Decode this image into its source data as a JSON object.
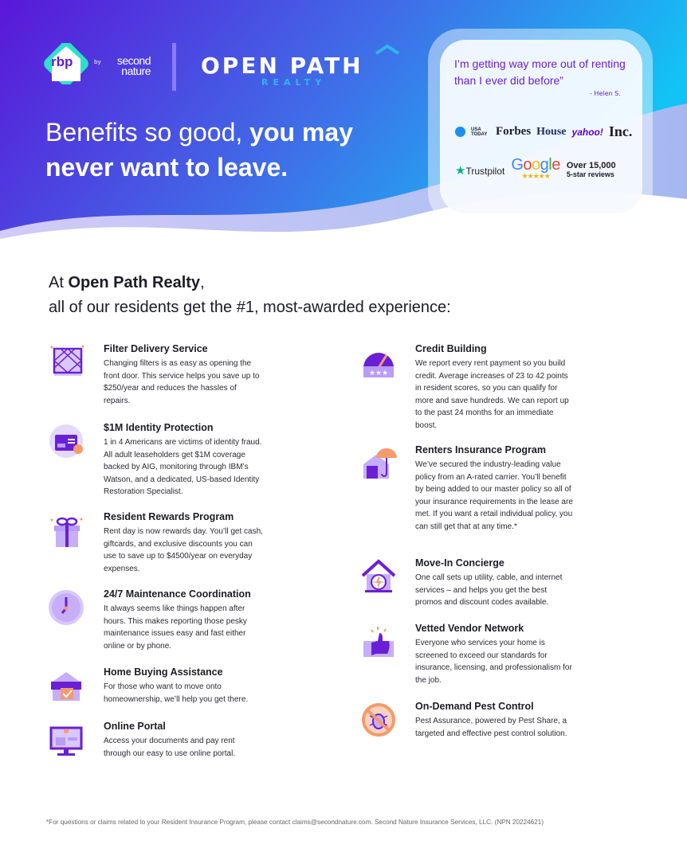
{
  "header": {
    "rbp": "rbp",
    "by": "by",
    "second_nature": "second nature",
    "open_path": "OPEN PATH",
    "realty": "REALTY",
    "headline_light": "Benefits so good, ",
    "headline_bold": "you may never want to leave."
  },
  "testimonial": {
    "quote": "I’m getting way more out of renting than I ever did before”",
    "author": "- Helen S."
  },
  "press": {
    "usa_today": "USA TODAY",
    "forbes": "Forbes",
    "house": "House",
    "yahoo": "yahoo!",
    "inc": "Inc."
  },
  "reviews": {
    "trustpilot": "Trustpilot",
    "google": "Google",
    "stars": "★★★★★",
    "count_line1": "Over 15,000",
    "count_line2": "5-star reviews"
  },
  "intro": {
    "prefix": "At ",
    "company": "Open Path Realty",
    "suffix": ",",
    "line2": "all of our residents get the #1, most-awarded experience:"
  },
  "benefits_left": [
    {
      "title": "Filter Delivery Service",
      "desc": "Changing filters is as easy as opening the front door. This service helps you save up to $250/year and reduces the hassles of repairs.",
      "icon": "air-filter-icon"
    },
    {
      "title": "$1M Identity Protection",
      "desc": "1 in 4 Americans are victims of identity fraud. All adult leaseholders get $1M coverage backed by AIG, monitoring through IBM’s Watson, and a dedicated, US-based Identity Restoration Specialist.",
      "icon": "id-badge-icon"
    },
    {
      "title": "Resident Rewards Program",
      "desc": "Rent day is now rewards day. You’ll get cash, giftcards, and exclusive discounts you can use to save up to $4500/year on everyday expenses.",
      "icon": "gift-icon"
    },
    {
      "title": "24/7 Maintenance Coordination",
      "desc": "It always seems like things happen after hours. This makes reporting those pesky maintenance issues easy and fast either online or by phone.",
      "icon": "clock-icon"
    },
    {
      "title": "Home Buying Assistance",
      "desc": "For those who want to move onto homeownership, we’ll help you get there.",
      "icon": "house-sign-icon"
    },
    {
      "title": "Online Portal",
      "desc": "Access your documents and pay rent through our easy to use online portal.",
      "icon": "monitor-icon"
    }
  ],
  "benefits_right": [
    {
      "title": "Credit Building",
      "desc": "We report every rent payment so you build credit. Average increases of 23 to 42 points in resident scores, so you can qualify for more and save hundreds. We can report up to the past 24 months for an immediate boost.",
      "icon": "credit-gauge-icon"
    },
    {
      "title": "Renters Insurance Program",
      "desc": "We’ve secured the industry-leading value policy from an A-rated carrier. You’ll benefit by being added to our master policy so all of your insurance requirements in the lease are met. If you want a retail individual policy, you can still get that at any time.*",
      "icon": "umbrella-house-icon"
    },
    {
      "title": "Move-In Concierge",
      "desc": "One call sets up utility, cable, and internet services – and helps you get the best promos and discount codes available.",
      "icon": "home-utilities-icon"
    },
    {
      "title": "Vetted Vendor Network",
      "desc": "Everyone who services your home is screened to exceed our standards for insurance, licensing, and professionalism for the job.",
      "icon": "thumbs-up-icon"
    },
    {
      "title": "On-Demand Pest Control",
      "desc": "Pest Assurance, powered by Pest Share, a targeted and effective pest control solution.",
      "icon": "no-bugs-icon"
    }
  ],
  "footer": "*For questions or claims related to your Resident Insurance Program, please contact claims@secondnature.com. Second Nature Insurance Services, LLC. (NPN 20224621)",
  "colors": {
    "purple": "#6a1fd6",
    "blue": "#1aa9f0",
    "light_purple": "#d9c8fb",
    "orange": "#f59a6b"
  }
}
